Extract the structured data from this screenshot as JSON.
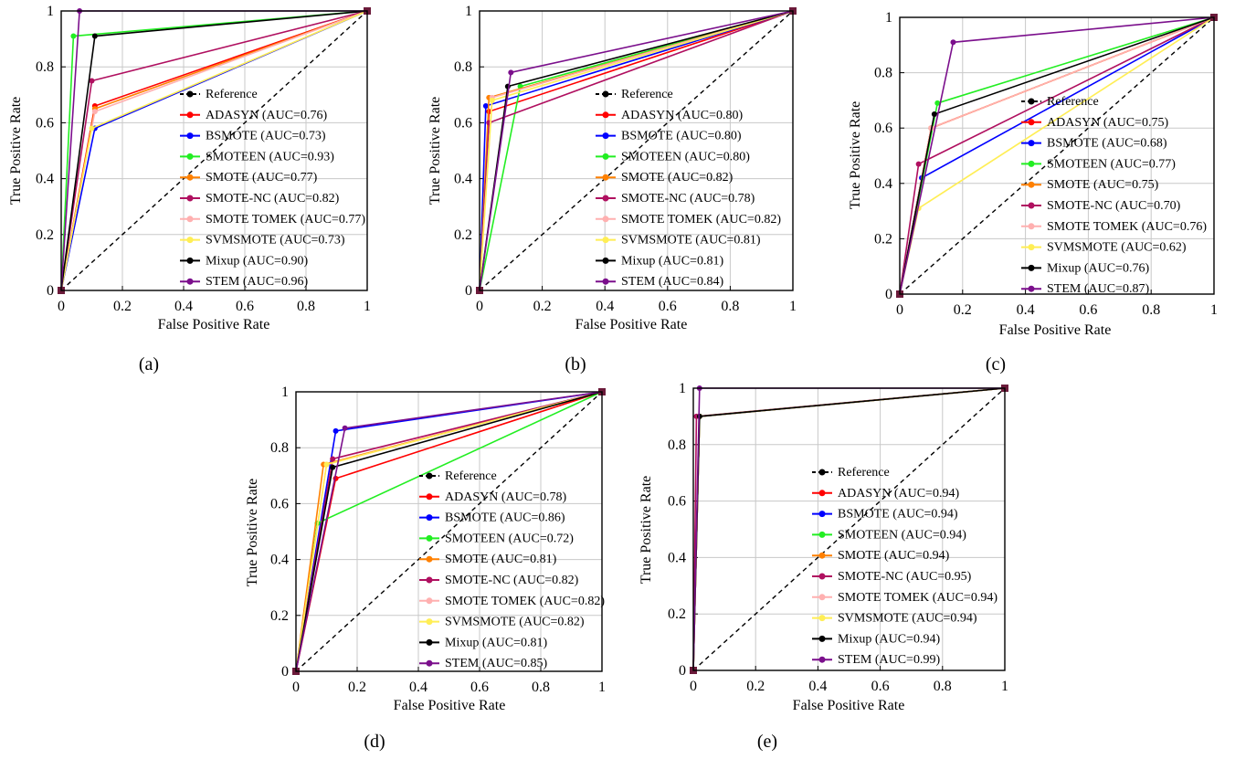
{
  "chart_data": [
    {
      "type": "line",
      "caption": "(a)",
      "xlabel": "False Positive Rate",
      "ylabel": "True Positive Rate",
      "xlim": [
        0,
        1
      ],
      "ylim": [
        0,
        1
      ],
      "xticks": [
        "0",
        "0.2",
        "0.4",
        "0.6",
        "0.8",
        "1"
      ],
      "yticks": [
        "0",
        "0.2",
        "0.4",
        "0.6",
        "0.8",
        "1"
      ],
      "grid": true,
      "legend_position": "center-right",
      "reference": {
        "name": "Reference",
        "points": [
          [
            0,
            0
          ],
          [
            1,
            1
          ]
        ]
      },
      "series": [
        {
          "name": "ADASYN (AUC=0.76)",
          "color": "#ff0000",
          "points": [
            [
              0,
              0
            ],
            [
              0.11,
              0.66
            ],
            [
              1,
              1
            ]
          ]
        },
        {
          "name": "BSMOTE (AUC=0.73)",
          "color": "#0000ff",
          "points": [
            [
              0,
              0
            ],
            [
              0.11,
              0.58
            ],
            [
              1,
              1
            ]
          ]
        },
        {
          "name": "SMOTEEN (AUC=0.93)",
          "color": "#22ee22",
          "points": [
            [
              0,
              0
            ],
            [
              0.04,
              0.91
            ],
            [
              1,
              1
            ]
          ]
        },
        {
          "name": "SMOTE (AUC=0.77)",
          "color": "#ff8000",
          "points": [
            [
              0,
              0
            ],
            [
              0.11,
              0.65
            ],
            [
              1,
              1
            ]
          ]
        },
        {
          "name": "SMOTE-NC (AUC=0.82)",
          "color": "#b01060",
          "points": [
            [
              0,
              0
            ],
            [
              0.1,
              0.75
            ],
            [
              1,
              1
            ]
          ]
        },
        {
          "name": "SMOTE TOMEK (AUC=0.77)",
          "color": "#ffb0b0",
          "points": [
            [
              0,
              0
            ],
            [
              0.11,
              0.64
            ],
            [
              1,
              1
            ]
          ]
        },
        {
          "name": "SVMSMOTE (AUC=0.73)",
          "color": "#ffee55",
          "points": [
            [
              0,
              0
            ],
            [
              0.1,
              0.58
            ],
            [
              1,
              1
            ]
          ]
        },
        {
          "name": "Mixup (AUC=0.90)",
          "color": "#000000",
          "points": [
            [
              0,
              0
            ],
            [
              0.11,
              0.91
            ],
            [
              1,
              1
            ]
          ]
        },
        {
          "name": "STEM (AUC=0.96)",
          "color": "#7b0f8c",
          "points": [
            [
              0,
              0
            ],
            [
              0.06,
              1
            ],
            [
              1,
              1
            ]
          ]
        }
      ]
    },
    {
      "type": "line",
      "caption": "(b)",
      "xlabel": "False Positive Rate",
      "ylabel": "True Positive Rate",
      "xlim": [
        0,
        1
      ],
      "ylim": [
        0,
        1
      ],
      "xticks": [
        "0",
        "0.2",
        "0.4",
        "0.6",
        "0.8",
        "1"
      ],
      "yticks": [
        "0",
        "0.2",
        "0.4",
        "0.6",
        "0.8",
        "1"
      ],
      "grid": true,
      "legend_position": "center-right",
      "reference": {
        "name": "Reference",
        "points": [
          [
            0,
            0
          ],
          [
            1,
            1
          ]
        ]
      },
      "series": [
        {
          "name": "ADASYN (AUC=0.80)",
          "color": "#ff0000",
          "points": [
            [
              0,
              0
            ],
            [
              0.03,
              0.64
            ],
            [
              1,
              1
            ]
          ]
        },
        {
          "name": "BSMOTE (AUC=0.80)",
          "color": "#0000ff",
          "points": [
            [
              0,
              0
            ],
            [
              0.02,
              0.66
            ],
            [
              1,
              1
            ]
          ]
        },
        {
          "name": "SMOTEEN (AUC=0.80)",
          "color": "#22ee22",
          "points": [
            [
              0,
              0
            ],
            [
              0.13,
              0.73
            ],
            [
              1,
              1
            ]
          ]
        },
        {
          "name": "SMOTE (AUC=0.82)",
          "color": "#ff8000",
          "points": [
            [
              0,
              0
            ],
            [
              0.03,
              0.69
            ],
            [
              1,
              1
            ]
          ]
        },
        {
          "name": "SMOTE-NC (AUC=0.78)",
          "color": "#b01060",
          "points": [
            [
              0,
              0
            ],
            [
              0.03,
              0.6
            ],
            [
              1,
              1
            ]
          ]
        },
        {
          "name": "SMOTE TOMEK (AUC=0.82)",
          "color": "#ffb0b0",
          "points": [
            [
              0,
              0
            ],
            [
              0.04,
              0.69
            ],
            [
              1,
              1
            ]
          ]
        },
        {
          "name": "SVMSMOTE (AUC=0.81)",
          "color": "#ffee55",
          "points": [
            [
              0,
              0
            ],
            [
              0.04,
              0.68
            ],
            [
              1,
              1
            ]
          ]
        },
        {
          "name": "Mixup (AUC=0.81)",
          "color": "#000000",
          "points": [
            [
              0,
              0
            ],
            [
              0.09,
              0.73
            ],
            [
              1,
              1
            ]
          ]
        },
        {
          "name": "STEM (AUC=0.84)",
          "color": "#7b0f8c",
          "points": [
            [
              0,
              0
            ],
            [
              0.1,
              0.78
            ],
            [
              1,
              1
            ]
          ]
        }
      ]
    },
    {
      "type": "line",
      "caption": "(c)",
      "xlabel": "False Positive Rate",
      "ylabel": "True Positive Rate",
      "xlim": [
        0,
        1
      ],
      "ylim": [
        0,
        1
      ],
      "xticks": [
        "0",
        "0.2",
        "0.4",
        "0.6",
        "0.8",
        "1"
      ],
      "yticks": [
        "0",
        "0.2",
        "0.4",
        "0.6",
        "0.8",
        "1"
      ],
      "grid": true,
      "legend_position": "center-right",
      "reference": {
        "name": "Reference",
        "points": [
          [
            0,
            0
          ],
          [
            1,
            1
          ]
        ]
      },
      "series": [
        {
          "name": "ADASYN (AUC=0.75)",
          "color": "#ff0000",
          "points": [
            [
              0,
              0
            ],
            [
              0.1,
              0.6
            ],
            [
              1,
              1
            ]
          ]
        },
        {
          "name": "BSMOTE (AUC=0.68)",
          "color": "#0000ff",
          "points": [
            [
              0,
              0
            ],
            [
              0.07,
              0.42
            ],
            [
              1,
              1
            ]
          ]
        },
        {
          "name": "SMOTEEN (AUC=0.77)",
          "color": "#22ee22",
          "points": [
            [
              0,
              0
            ],
            [
              0.12,
              0.69
            ],
            [
              1,
              1
            ]
          ]
        },
        {
          "name": "SMOTE (AUC=0.75)",
          "color": "#ff8000",
          "points": [
            [
              0,
              0
            ],
            [
              0.1,
              0.6
            ],
            [
              1,
              1
            ]
          ]
        },
        {
          "name": "SMOTE-NC (AUC=0.70)",
          "color": "#b01060",
          "points": [
            [
              0,
              0
            ],
            [
              0.06,
              0.47
            ],
            [
              1,
              1
            ]
          ]
        },
        {
          "name": "SMOTE TOMEK (AUC=0.76)",
          "color": "#ffb0b0",
          "points": [
            [
              0,
              0
            ],
            [
              0.1,
              0.6
            ],
            [
              1,
              1
            ]
          ]
        },
        {
          "name": "SVMSMOTE (AUC=0.62)",
          "color": "#ffee55",
          "points": [
            [
              0,
              0
            ],
            [
              0.06,
              0.31
            ],
            [
              1,
              1
            ]
          ]
        },
        {
          "name": "Mixup (AUC=0.76)",
          "color": "#000000",
          "points": [
            [
              0,
              0
            ],
            [
              0.11,
              0.65
            ],
            [
              1,
              1
            ]
          ]
        },
        {
          "name": "STEM (AUC=0.87)",
          "color": "#7b0f8c",
          "points": [
            [
              0,
              0
            ],
            [
              0.17,
              0.91
            ],
            [
              1,
              1
            ]
          ]
        }
      ]
    },
    {
      "type": "line",
      "caption": "(d)",
      "xlabel": "False Positive Rate",
      "ylabel": "True Positive Rate",
      "xlim": [
        0,
        1
      ],
      "ylim": [
        0,
        1
      ],
      "xticks": [
        "0",
        "0.2",
        "0.4",
        "0.6",
        "0.8",
        "1"
      ],
      "yticks": [
        "0",
        "0.2",
        "0.4",
        "0.6",
        "0.8",
        "1"
      ],
      "grid": true,
      "legend_position": "center-right",
      "reference": {
        "name": "Reference",
        "points": [
          [
            0,
            0
          ],
          [
            1,
            1
          ]
        ]
      },
      "series": [
        {
          "name": "ADASYN (AUC=0.78)",
          "color": "#ff0000",
          "points": [
            [
              0,
              0
            ],
            [
              0.13,
              0.69
            ],
            [
              1,
              1
            ]
          ]
        },
        {
          "name": "BSMOTE (AUC=0.86)",
          "color": "#0000ff",
          "points": [
            [
              0,
              0
            ],
            [
              0.13,
              0.86
            ],
            [
              1,
              1
            ]
          ]
        },
        {
          "name": "SMOTEEN (AUC=0.72)",
          "color": "#22ee22",
          "points": [
            [
              0,
              0
            ],
            [
              0.07,
              0.53
            ],
            [
              1,
              1
            ]
          ]
        },
        {
          "name": "SMOTE (AUC=0.81)",
          "color": "#ff8000",
          "points": [
            [
              0,
              0
            ],
            [
              0.09,
              0.74
            ],
            [
              1,
              1
            ]
          ]
        },
        {
          "name": "SMOTE-NC (AUC=0.82)",
          "color": "#b01060",
          "points": [
            [
              0,
              0
            ],
            [
              0.12,
              0.76
            ],
            [
              1,
              1
            ]
          ]
        },
        {
          "name": "SMOTE TOMEK (AUC=0.82)",
          "color": "#ffb0b0",
          "points": [
            [
              0,
              0
            ],
            [
              0.1,
              0.74
            ],
            [
              1,
              1
            ]
          ]
        },
        {
          "name": "SVMSMOTE (AUC=0.82)",
          "color": "#ffee55",
          "points": [
            [
              0,
              0
            ],
            [
              0.1,
              0.74
            ],
            [
              1,
              1
            ]
          ]
        },
        {
          "name": "Mixup (AUC=0.81)",
          "color": "#000000",
          "points": [
            [
              0,
              0
            ],
            [
              0.12,
              0.73
            ],
            [
              1,
              1
            ]
          ]
        },
        {
          "name": "STEM (AUC=0.85)",
          "color": "#7b0f8c",
          "points": [
            [
              0,
              0
            ],
            [
              0.16,
              0.87
            ],
            [
              1,
              1
            ]
          ]
        }
      ]
    },
    {
      "type": "line",
      "caption": "(e)",
      "xlabel": "False Positive Rate",
      "ylabel": "True Positive Rate",
      "xlim": [
        0,
        1
      ],
      "ylim": [
        0,
        1
      ],
      "xticks": [
        "0",
        "0.2",
        "0.4",
        "0.6",
        "0.8",
        "1"
      ],
      "yticks": [
        "0",
        "0.2",
        "0.4",
        "0.6",
        "0.8",
        "1"
      ],
      "grid": true,
      "legend_position": "center-right",
      "reference": {
        "name": "Reference",
        "points": [
          [
            0,
            0
          ],
          [
            1,
            1
          ]
        ]
      },
      "series": [
        {
          "name": "ADASYN (AUC=0.94)",
          "color": "#ff0000",
          "points": [
            [
              0,
              0
            ],
            [
              0.02,
              0.9
            ],
            [
              1,
              1
            ]
          ]
        },
        {
          "name": "BSMOTE (AUC=0.94)",
          "color": "#0000ff",
          "points": [
            [
              0,
              0
            ],
            [
              0.02,
              0.9
            ],
            [
              1,
              1
            ]
          ]
        },
        {
          "name": "SMOTEEN (AUC=0.94)",
          "color": "#22ee22",
          "points": [
            [
              0,
              0
            ],
            [
              0.02,
              0.9
            ],
            [
              1,
              1
            ]
          ]
        },
        {
          "name": "SMOTE (AUC=0.94)",
          "color": "#ff8000",
          "points": [
            [
              0,
              0
            ],
            [
              0.02,
              0.9
            ],
            [
              1,
              1
            ]
          ]
        },
        {
          "name": "SMOTE-NC (AUC=0.95)",
          "color": "#b01060",
          "points": [
            [
              0,
              0
            ],
            [
              0.01,
              0.9
            ],
            [
              1,
              1
            ]
          ]
        },
        {
          "name": "SMOTE TOMEK (AUC=0.94)",
          "color": "#ffb0b0",
          "points": [
            [
              0,
              0
            ],
            [
              0.02,
              0.9
            ],
            [
              1,
              1
            ]
          ]
        },
        {
          "name": "SVMSMOTE (AUC=0.94)",
          "color": "#ffee55",
          "points": [
            [
              0,
              0
            ],
            [
              0.02,
              0.9
            ],
            [
              1,
              1
            ]
          ]
        },
        {
          "name": "Mixup (AUC=0.94)",
          "color": "#000000",
          "points": [
            [
              0,
              0
            ],
            [
              0.02,
              0.9
            ],
            [
              1,
              1
            ]
          ]
        },
        {
          "name": "STEM (AUC=0.99)",
          "color": "#7b0f8c",
          "points": [
            [
              0,
              0
            ],
            [
              0.02,
              1
            ],
            [
              1,
              1
            ]
          ]
        }
      ]
    }
  ]
}
